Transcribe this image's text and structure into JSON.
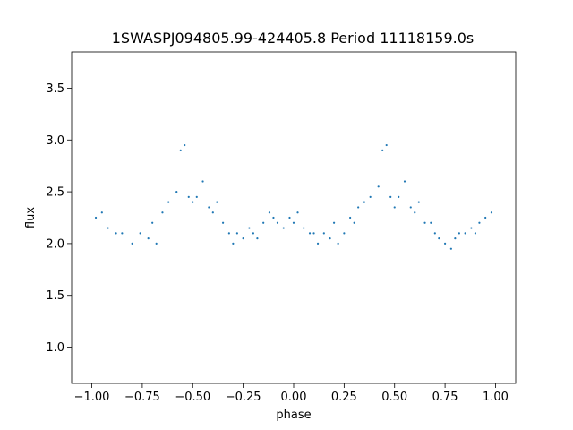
{
  "chart_data": {
    "type": "scatter",
    "title": "1SWASPJ094805.99-424405.8 Period 11118159.0s",
    "xlabel": "phase",
    "ylabel": "flux",
    "xlim": [
      -1.1,
      1.1
    ],
    "ylim": [
      0.65,
      3.85
    ],
    "x_ticks": [
      -1.0,
      -0.75,
      -0.5,
      -0.25,
      0.0,
      0.25,
      0.5,
      0.75,
      1.0
    ],
    "x_tick_labels": [
      "−1.00",
      "−0.75",
      "−0.50",
      "−0.25",
      "0.00",
      "0.25",
      "0.50",
      "0.75",
      "1.00"
    ],
    "y_ticks": [
      1.0,
      1.5,
      2.0,
      2.5,
      3.0,
      3.5
    ],
    "y_tick_labels": [
      "1.0",
      "1.5",
      "2.0",
      "2.5",
      "3.0",
      "3.5"
    ],
    "grid": false,
    "legend": "none",
    "marker_color": "#1f77b4",
    "series": [
      {
        "x": [
          -0.98,
          -0.95,
          -0.92,
          -0.88,
          -0.85,
          -0.8,
          -0.76,
          -0.72,
          -0.7,
          -0.68,
          -0.65,
          -0.62,
          -0.58,
          -0.56,
          -0.54,
          -0.52,
          -0.5,
          -0.48,
          -0.45,
          -0.42,
          -0.4,
          -0.38,
          -0.35,
          -0.32,
          -0.3,
          -0.28,
          -0.25,
          -0.22,
          -0.2,
          -0.18,
          -0.15,
          -0.12,
          -0.1,
          -0.08,
          -0.05,
          -0.02,
          0.0,
          0.02,
          0.05,
          0.08,
          0.1,
          0.12,
          0.15,
          0.18,
          0.2,
          0.22,
          0.25,
          0.28,
          0.3,
          0.32,
          0.35,
          0.38,
          0.42,
          0.44,
          0.46,
          0.48,
          0.5,
          0.52,
          0.55,
          0.58,
          0.6,
          0.62,
          0.65,
          0.68,
          0.7,
          0.72,
          0.75,
          0.78,
          0.8,
          0.82,
          0.85,
          0.88,
          0.9,
          0.92,
          0.95,
          0.98
        ],
        "y": [
          2.25,
          2.3,
          2.15,
          2.1,
          2.1,
          2.0,
          2.1,
          2.05,
          2.2,
          2.0,
          2.3,
          2.4,
          2.5,
          2.9,
          2.95,
          2.45,
          2.4,
          2.45,
          2.6,
          2.35,
          2.3,
          2.4,
          2.2,
          2.1,
          2.0,
          2.1,
          2.05,
          2.15,
          2.1,
          2.05,
          2.2,
          2.3,
          2.25,
          2.2,
          2.15,
          2.25,
          2.2,
          2.3,
          2.15,
          2.1,
          2.1,
          2.0,
          2.1,
          2.05,
          2.2,
          2.0,
          2.1,
          2.25,
          2.2,
          2.35,
          2.4,
          2.45,
          2.55,
          2.9,
          2.95,
          2.45,
          2.35,
          2.45,
          2.6,
          2.35,
          2.3,
          2.4,
          2.2,
          2.2,
          2.1,
          2.05,
          2.0,
          1.95,
          2.05,
          2.1,
          2.1,
          2.15,
          2.1,
          2.2,
          2.25,
          2.3
        ]
      }
    ]
  }
}
